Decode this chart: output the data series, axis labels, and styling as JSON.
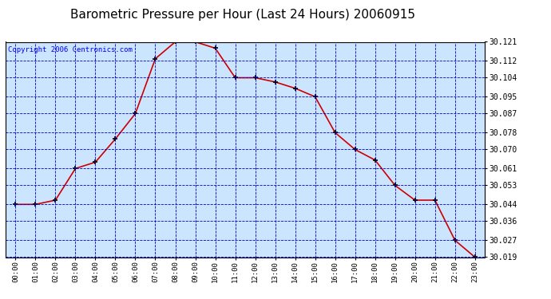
{
  "title": "Barometric Pressure per Hour (Last 24 Hours) 20060915",
  "copyright": "Copyright 2006 Centronics.com",
  "x_labels": [
    "00:00",
    "01:00",
    "02:00",
    "03:00",
    "04:00",
    "05:00",
    "06:00",
    "07:00",
    "08:00",
    "09:00",
    "10:00",
    "11:00",
    "12:00",
    "13:00",
    "14:00",
    "15:00",
    "16:00",
    "17:00",
    "18:00",
    "19:00",
    "20:00",
    "21:00",
    "22:00",
    "23:00"
  ],
  "y_values": [
    30.044,
    30.044,
    30.046,
    30.061,
    30.064,
    30.075,
    30.087,
    30.113,
    30.121,
    30.121,
    30.118,
    30.104,
    30.104,
    30.102,
    30.099,
    30.095,
    30.078,
    30.07,
    30.065,
    30.053,
    30.046,
    30.046,
    30.027,
    30.019
  ],
  "x_indices": [
    0,
    1,
    2,
    3,
    4,
    5,
    6,
    7,
    8,
    9,
    10,
    11,
    12,
    13,
    14,
    15,
    16,
    17,
    18,
    19,
    20,
    21,
    22,
    23
  ],
  "yticks": [
    30.019,
    30.027,
    30.036,
    30.044,
    30.053,
    30.061,
    30.07,
    30.078,
    30.087,
    30.095,
    30.104,
    30.112,
    30.121
  ],
  "ytick_labels": [
    "30.019",
    "30.027",
    "30.036",
    "30.044",
    "30.053",
    "30.061",
    "30.070",
    "30.078",
    "30.087",
    "30.095",
    "30.104",
    "30.112",
    "30.121"
  ],
  "ymin": 30.019,
  "ymax": 30.121,
  "line_color": "#cc0000",
  "marker_color": "#000000",
  "bg_color": "#ffffff",
  "plot_bg_color": "#cce5ff",
  "grid_color": "#0000cc",
  "title_color": "#000000",
  "title_fontsize": 11,
  "copyright_fontsize": 6.5
}
